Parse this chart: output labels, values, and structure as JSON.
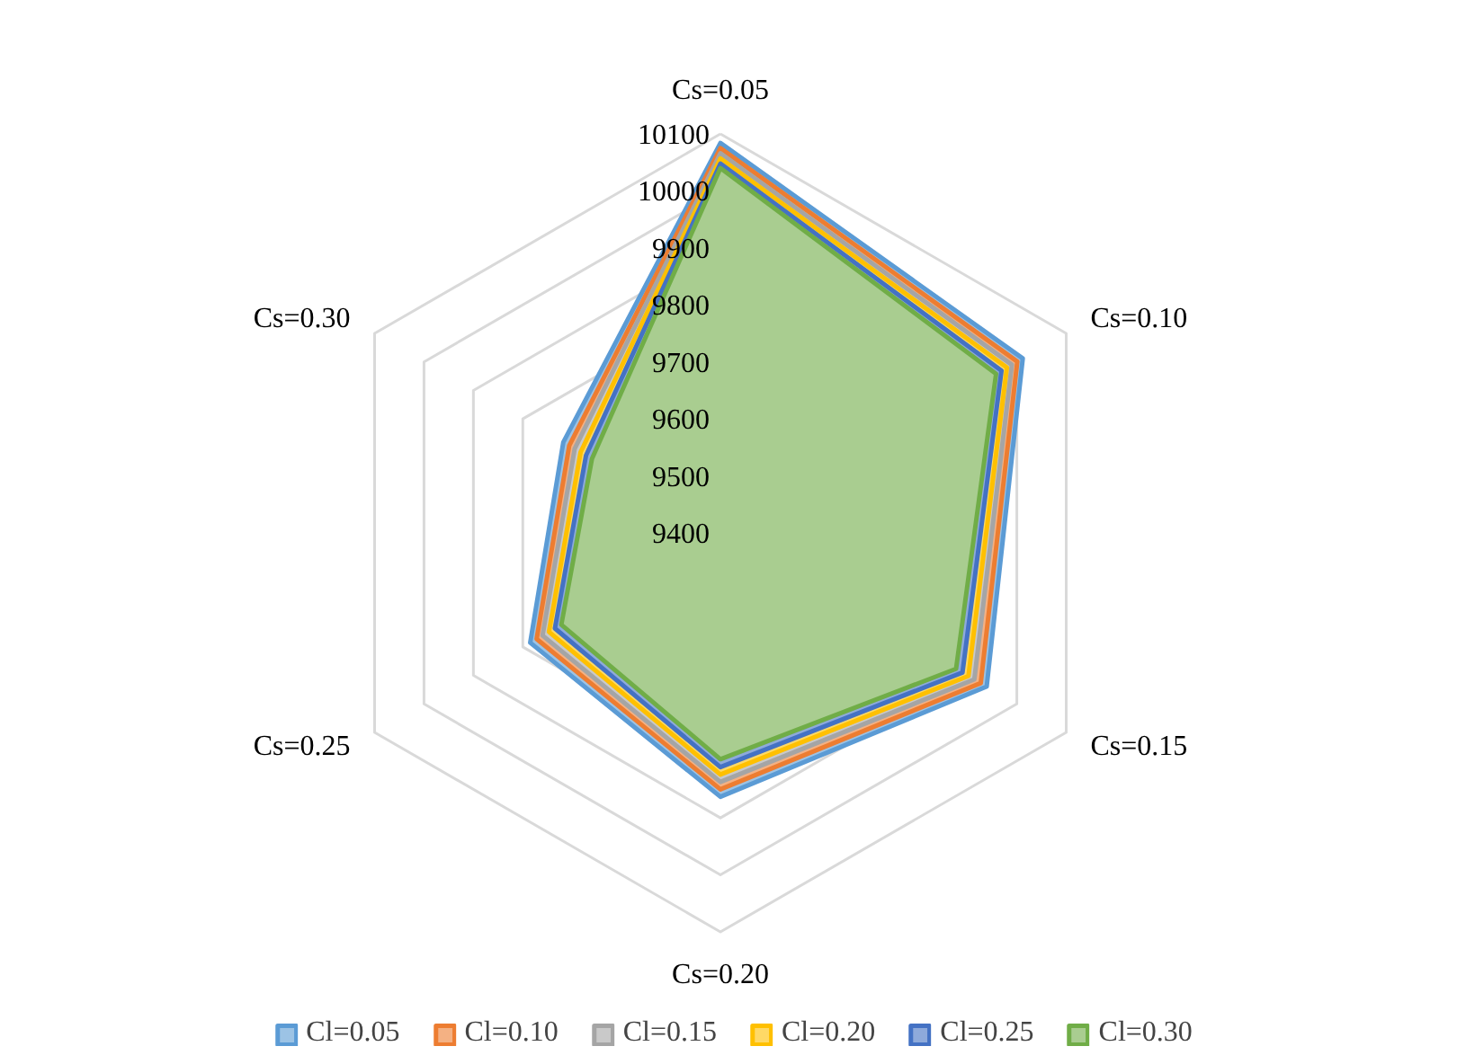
{
  "chart_data": {
    "type": "radar",
    "categories": [
      "Cs=0.05",
      "Cs=0.10",
      "Cs=0.15",
      "Cs=0.20",
      "Cs=0.25",
      "Cs=0.30"
    ],
    "ylim": [
      9400,
      10100
    ],
    "yticks": [
      9400,
      9500,
      9600,
      9700,
      9800,
      9900,
      10000,
      10100
    ],
    "grid": true,
    "legend": "bottom",
    "series": [
      {
        "name": "Cl=0.05",
        "color": "#5b9bd5",
        "values": [
          10084,
          10012,
          9939,
          9863,
          9785,
          9718
        ]
      },
      {
        "name": "Cl=0.10",
        "color": "#ed7d31",
        "values": [
          10075,
          10001,
          9927,
          9850,
          9772,
          9706
        ]
      },
      {
        "name": "Cl=0.15",
        "color": "#a5a5a5",
        "values": [
          10066,
          9990,
          9914,
          9837,
          9760,
          9695
        ]
      },
      {
        "name": "Cl=0.20",
        "color": "#ffc000",
        "values": [
          10057,
          9980,
          9902,
          9824,
          9747,
          9683
        ]
      },
      {
        "name": "Cl=0.25",
        "color": "#4472c4",
        "values": [
          10048,
          9969,
          9890,
          9811,
          9735,
          9672
        ]
      },
      {
        "name": "Cl=0.30",
        "color": "#70ad47",
        "values": [
          10040,
          9958,
          9877,
          9797,
          9722,
          9660
        ]
      }
    ]
  }
}
